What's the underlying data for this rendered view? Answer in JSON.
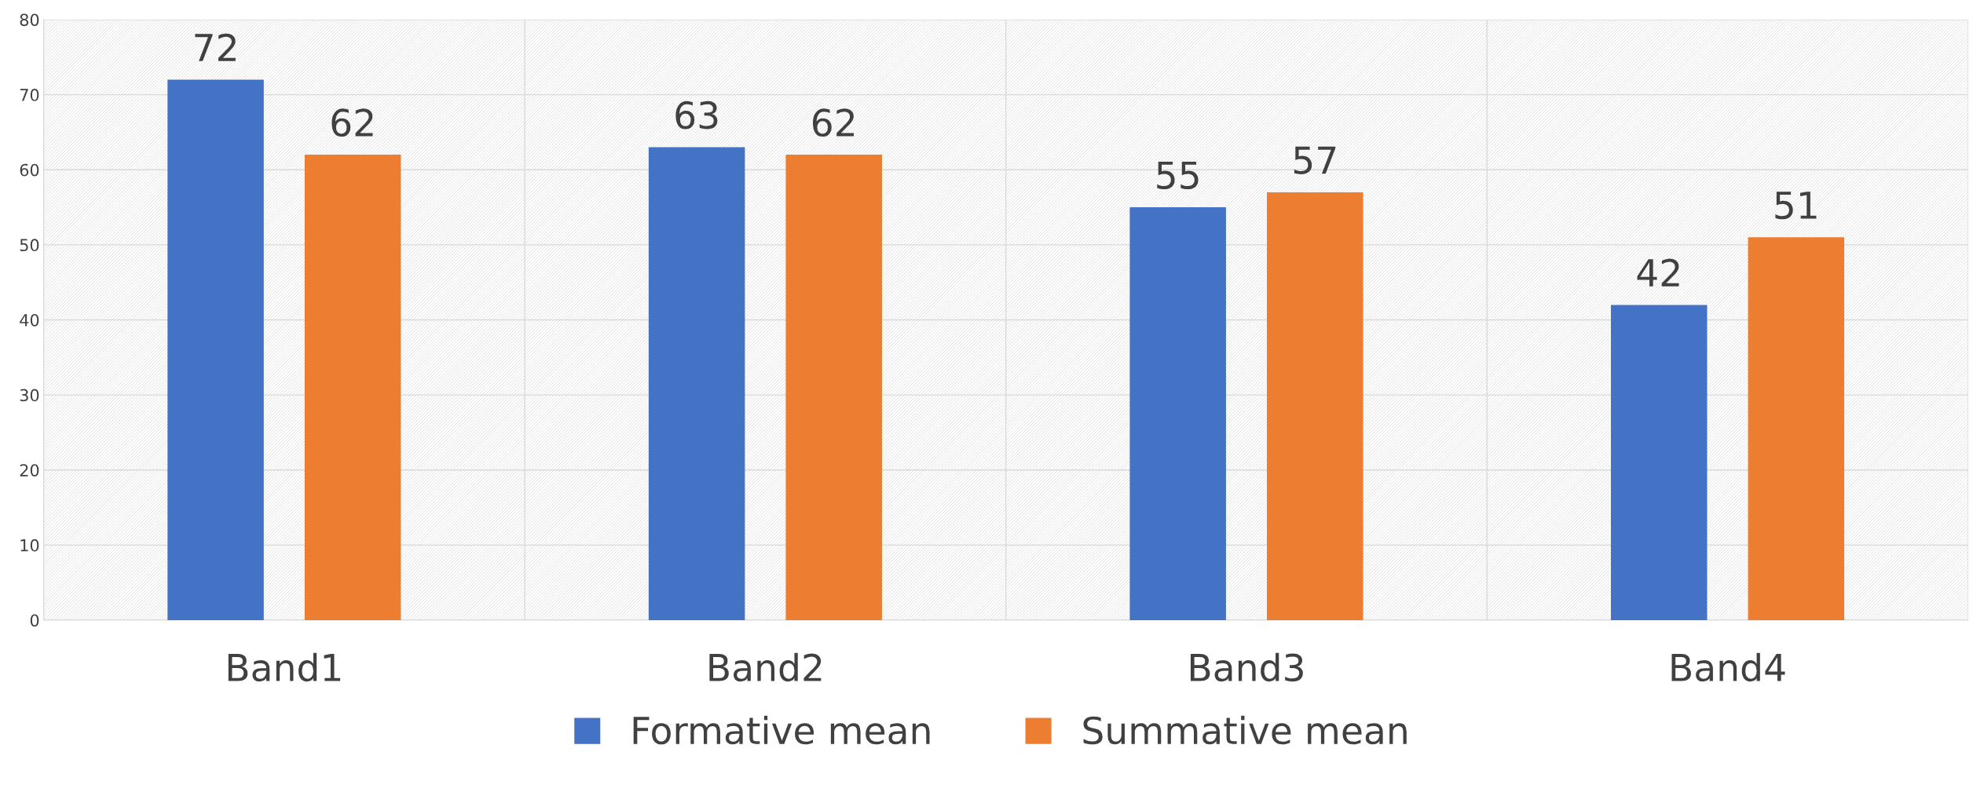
{
  "chart_data": {
    "type": "bar",
    "categories": [
      "Band1",
      "Band2",
      "Band3",
      "Band4"
    ],
    "series": [
      {
        "name": "Formative mean",
        "color": "#4472c4",
        "values": [
          72,
          63,
          55,
          42
        ]
      },
      {
        "name": "Summative mean",
        "color": "#ed7d31",
        "values": [
          62,
          62,
          57,
          51
        ]
      }
    ],
    "ylim": [
      0,
      80
    ],
    "yticks": [
      0,
      10,
      20,
      30,
      40,
      50,
      60,
      70,
      80
    ],
    "grid": true,
    "legend": "bottom",
    "data_labels": true
  }
}
